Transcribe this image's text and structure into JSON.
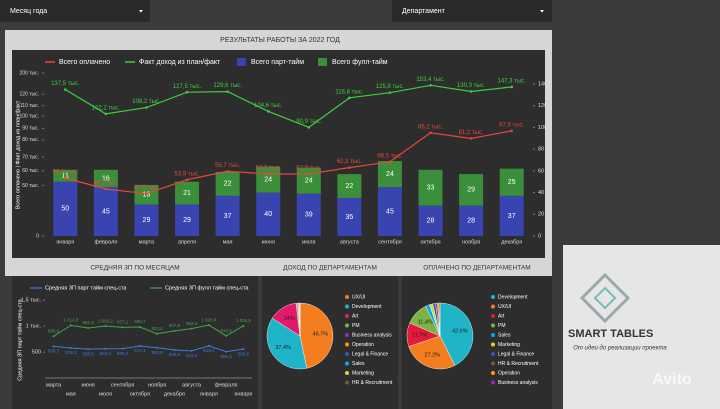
{
  "filters": {
    "month": "Месяц года",
    "department": "Департамент"
  },
  "chart_data": [
    {
      "type": "bar",
      "stacked": true,
      "title": "РЕЗУЛЬТАТЫ РАБОТЫ ЗА 2022 ГОД",
      "y_label": "Всего оплачено | Факт доход из план/факт",
      "categories": [
        "января",
        "февраля",
        "марта",
        "апреля",
        "мая",
        "июня",
        "июля",
        "августа",
        "сентября",
        "октября",
        "ноября",
        "декабря"
      ],
      "ylim": [
        0,
        200
      ],
      "yticks": [
        0,
        {
          "value": 50,
          "label": "50 тыс."
        },
        {
          "value": 60,
          "label": "60 тыс."
        },
        {
          "value": 70,
          "label": "70 тыс."
        },
        {
          "value": 80,
          "label": "80 тыс."
        },
        {
          "value": 90,
          "label": "90 тыс."
        },
        {
          "value": 100,
          "label": "100 тыс."
        },
        {
          "value": 110,
          "label": "110 тыс."
        },
        {
          "value": 120,
          "label": "120 тыс."
        },
        {
          "value": 200,
          "label": "200 тыс."
        }
      ],
      "y2lim": [
        0,
        140
      ],
      "y2ticks": [
        0,
        20,
        40,
        60,
        80,
        100,
        120,
        140
      ],
      "grid": false,
      "series": [
        {
          "name": "Всего оплачено",
          "type": "line",
          "color": "#e8453c",
          "values": [
            55.1,
            46.5,
            41.9,
            53.9,
            59.7,
            57.8,
            57.9,
            62.3,
            66.5,
            86.2,
            81.2,
            87.9
          ],
          "value_labels": [
            "55,1 тыс.",
            "46,5 тыс.",
            "41,9 тыс.",
            "53,9 тыс.",
            "59,7 тыс.",
            "57,8 тыс.",
            "57,9 тыс.",
            "62,3 тыс.",
            "66,5 тыс.",
            "86,2 тыс.",
            "81,2 тыс.",
            "87,9 тыс."
          ]
        },
        {
          "name": "Факт доход из план/факт",
          "type": "line",
          "color": "#3ccf3c",
          "values": [
            137.5,
            102.2,
            108.2,
            127.5,
            129.6,
            104.6,
            90.9,
            116.8,
            125.8,
            153.4,
            130.3,
            147.3
          ],
          "value_labels": [
            "137,5 тыс.",
            "102,2 тыс.",
            "108,2 тыс.",
            "127,5 тыс.",
            "129,6 тыс.",
            "104,6 тыс.",
            "90,9 тыс.",
            "116,8 тыс.",
            "125,8 тыс.",
            "153,4 тыс.",
            "130,3 тыс.",
            "147,3 тыс."
          ]
        },
        {
          "name": "Всего парт-тайм",
          "type": "bar",
          "axis": "y2",
          "color": "#3a44b0",
          "values": [
            50,
            45,
            29,
            29,
            37,
            40,
            39,
            35,
            45,
            28,
            28,
            37
          ]
        },
        {
          "name": "Всего фулл-тайм",
          "type": "bar",
          "axis": "y2",
          "color": "#3b8f3b",
          "values": [
            11,
            16,
            18,
            21,
            22,
            24,
            24,
            22,
            24,
            33,
            29,
            25
          ]
        }
      ]
    },
    {
      "type": "line",
      "title": "СРЕДНЯЯ ЗП ПО МЕСЯЦАМ",
      "y_label": "Средняя ЗП парт тайм спец-ста",
      "categories": [
        "марта",
        "мая",
        "июня",
        "июля",
        "сентября",
        "октября",
        "ноября",
        "декабря",
        "августа",
        "января",
        "февраля",
        "января"
      ],
      "ylim": [
        0,
        1600
      ],
      "yticks": [
        500,
        {
          "value": 1000,
          "label": "1 тыс."
        },
        {
          "value": 1500,
          "label": "1,5 тыс."
        }
      ],
      "series": [
        {
          "name": "Средняя ЗП парт тайм спец-ста",
          "color": "#3b7de0",
          "values": [
            608.7,
            578.3,
            555.6,
            563.5,
            566.2,
            617.1,
            583.9,
            539.8,
            523.0,
            619.2,
            506.3,
            556.6
          ],
          "value_labels": [
            "608,7",
            "578,3",
            "555,6",
            "563,5",
            "566,2",
            "617,1",
            "583,9",
            "539,8",
            "523,0",
            "619,2",
            "506,3",
            "556,6"
          ]
        },
        {
          "name": "Средняя ЗП фулл тайм спец-ста",
          "color": "#3ea84a",
          "values": [
            805.0,
            1014.8,
            962.9,
            1001.2,
            977.1,
            982.7,
            853.4,
            907.5,
            952.3,
            1020.4,
            812.6,
            1005.5
          ],
          "value_labels": [
            "805,0",
            "1 014,8",
            "962,9",
            "1 001,2",
            "977,1",
            "982,7",
            "853,4",
            "907,5",
            "952,3",
            "1 020,4",
            "812,6",
            "1 005,5"
          ]
        }
      ]
    },
    {
      "type": "pie",
      "title": "ДОХОД ПО ДЕПАРТАМЕНТАМ",
      "categories": [
        "UX/UI",
        "Development",
        "Art",
        "PM",
        "Business analysis",
        "Operation",
        "Legal & Finance",
        "Sales",
        "Marketing",
        "HR & Recruitment"
      ],
      "values": [
        46.7,
        37.4,
        14,
        0.8,
        0.4,
        0.3,
        0.2,
        0.1,
        0.05,
        0.05
      ],
      "value_labels": [
        "46,7%",
        "37,4%",
        "14%",
        null,
        null,
        null,
        null,
        null,
        null,
        null
      ],
      "colors": [
        "#f47d20",
        "#1fb5c9",
        "#e5196b",
        "#7cb342",
        "#9c27b0",
        "#ff9800",
        "#3f51b5",
        "#03a9f4",
        "#cddc39",
        "#795548"
      ]
    },
    {
      "type": "pie",
      "title": "ОПЛАЧЕНО ПО ДЕПАРТАМЕНТАМ",
      "categories": [
        "Development",
        "UX/UI",
        "Art",
        "PM",
        "Sales",
        "Marketing",
        "Legal & Finance",
        "HR & Recruitment",
        "Operation",
        "Business analysis"
      ],
      "values": [
        42.6,
        27.2,
        11.7,
        11.4,
        2,
        1.6,
        1.3,
        1,
        0.7,
        0.5
      ],
      "value_labels": [
        "42,6%",
        "27,2%",
        "11,7%",
        "11,4%",
        null,
        null,
        null,
        null,
        null,
        null
      ],
      "colors": [
        "#1fb5c9",
        "#f47d20",
        "#e5193b",
        "#7cb342",
        "#03a9f4",
        "#cddc39",
        "#3f51b5",
        "#795548",
        "#ff9800",
        "#9c27b0"
      ]
    }
  ],
  "promo": {
    "title": "SMART TABLES",
    "subtitle": "От идеи до реализации проекта",
    "watermark": "Avito"
  }
}
